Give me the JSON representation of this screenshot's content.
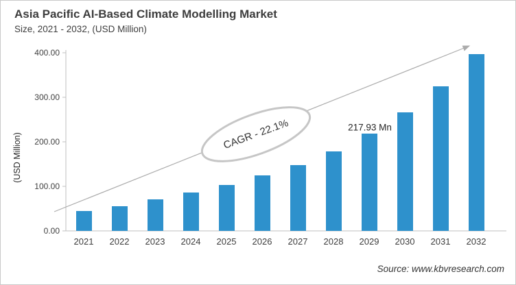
{
  "header": {
    "title": "Asia Pacific AI-Based Climate Modelling Market",
    "subtitle": "Size, 2021 - 2032, (USD Million)"
  },
  "chart_data": {
    "type": "bar",
    "title": "Asia Pacific AI-Based Climate Modelling Market Size, 2021 - 2032, (USD Million)",
    "categories": [
      "2021",
      "2022",
      "2023",
      "2024",
      "2025",
      "2026",
      "2027",
      "2028",
      "2029",
      "2030",
      "2031",
      "2032"
    ],
    "values": [
      44,
      56,
      71,
      86,
      103,
      124,
      147,
      178,
      217.93,
      266,
      324,
      397
    ],
    "xlabel": "",
    "ylabel": "(USD Million)",
    "ylim": [
      0,
      400
    ],
    "yticks": [
      0,
      100,
      200,
      300,
      400
    ],
    "ytick_labels": [
      "0.00",
      "100.00",
      "200.00",
      "300.00",
      "400.00"
    ],
    "grid": "off",
    "legend": "none",
    "bar_color": "#2E91CC",
    "axis_color": "#bfbfbf",
    "arrow_color": "#ababab",
    "ellipse_stroke_color": "#c6c6c6",
    "cagr_label": "CAGR - 22.1%",
    "annotation": {
      "text": "217.93 Mn",
      "category": "2029"
    },
    "trend_arrow": "rising left-to-right with arrowhead at top right"
  },
  "source": {
    "text": "Source: www.kbvresearch.com"
  }
}
